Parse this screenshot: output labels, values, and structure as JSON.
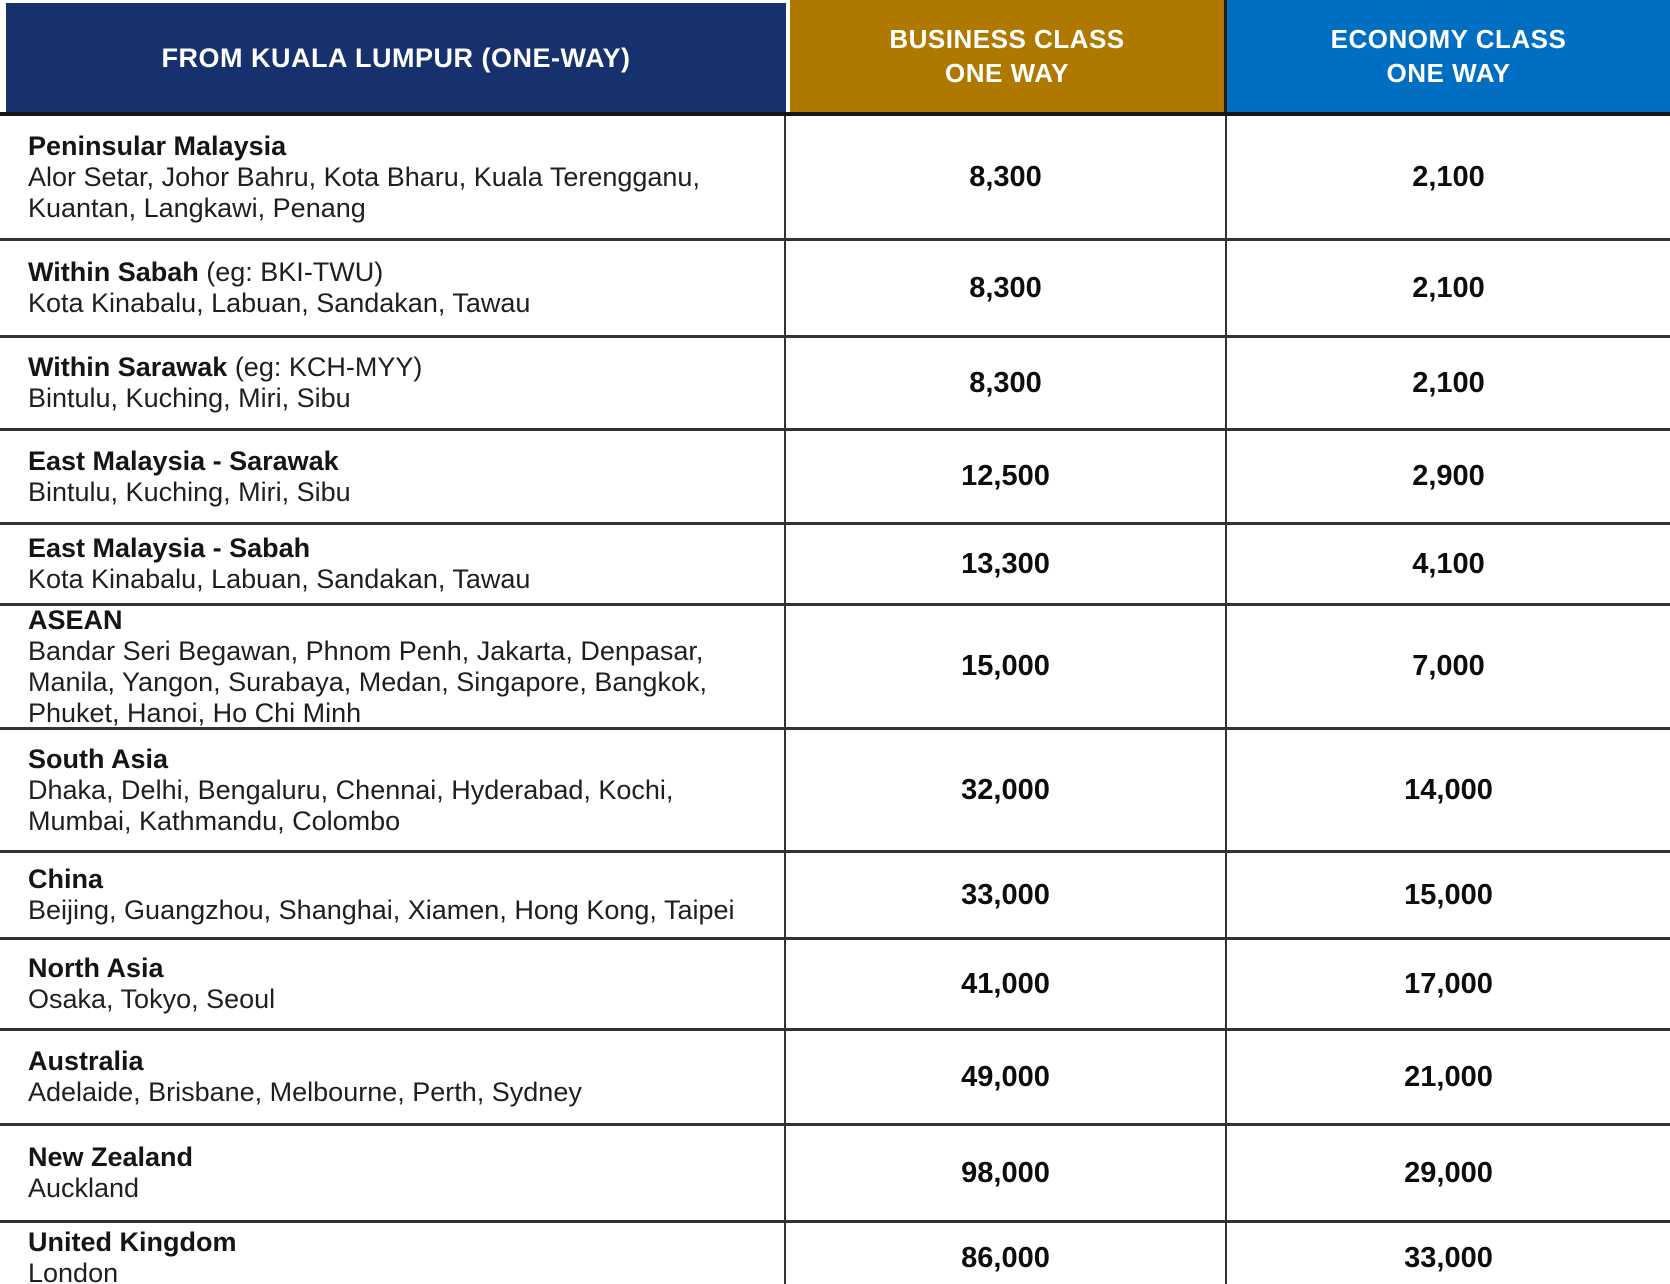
{
  "colors": {
    "header_navy": "#16316E",
    "header_gold": "#AF7900",
    "header_economy_blue": "#016FC1",
    "border_dark": "#333333"
  },
  "chart_data": {
    "type": "table",
    "title": "FROM KUALA LUMPUR (ONE-WAY)",
    "columns": [
      "FROM KUALA LUMPUR (ONE-WAY)",
      "BUSINESS CLASS ONE WAY",
      "ECONOMY CLASS ONE WAY"
    ],
    "header": {
      "route": "FROM KUALA LUMPUR (ONE-WAY)",
      "business_line1": "BUSINESS CLASS",
      "business_line2": "ONE WAY",
      "economy_line1": "ECONOMY CLASS",
      "economy_line2": "ONE WAY"
    },
    "rows": [
      {
        "region": "Peninsular Malaysia",
        "note": "",
        "cities": "Alor Setar, Johor Bahru, Kota Bharu, Kuala Terengganu,\nKuantan, Langkawi, Penang",
        "business": "8,300",
        "economy": "2,100"
      },
      {
        "region": "Within Sabah",
        "note": " (eg: BKI-TWU)",
        "cities": "Kota Kinabalu, Labuan, Sandakan, Tawau",
        "business": "8,300",
        "economy": "2,100"
      },
      {
        "region": "Within Sarawak",
        "note": " (eg: KCH-MYY)",
        "cities": "Bintulu, Kuching, Miri, Sibu",
        "business": "8,300",
        "economy": "2,100"
      },
      {
        "region": "East Malaysia - Sarawak",
        "note": "",
        "cities": "Bintulu, Kuching, Miri, Sibu",
        "business": "12,500",
        "economy": "2,900"
      },
      {
        "region": "East Malaysia - Sabah",
        "note": "",
        "cities": "Kota Kinabalu, Labuan, Sandakan, Tawau",
        "business": "13,300",
        "economy": "4,100"
      },
      {
        "region": "ASEAN",
        "note": "",
        "cities": "Bandar Seri Begawan, Phnom Penh, Jakarta, Denpasar,\nManila, Yangon, Surabaya, Medan, Singapore, Bangkok,\nPhuket, Hanoi, Ho Chi Minh",
        "business": "15,000",
        "economy": "7,000"
      },
      {
        "region": "South Asia",
        "note": "",
        "cities": "Dhaka, Delhi, Bengaluru, Chennai, Hyderabad, Kochi,\nMumbai, Kathmandu, Colombo",
        "business": "32,000",
        "economy": "14,000"
      },
      {
        "region": "China",
        "note": "",
        "cities": "Beijing, Guangzhou, Shanghai, Xiamen, Hong Kong, Taipei",
        "business": "33,000",
        "economy": "15,000"
      },
      {
        "region": "North Asia",
        "note": "",
        "cities": "Osaka, Tokyo, Seoul",
        "business": "41,000",
        "economy": "17,000"
      },
      {
        "region": "Australia",
        "note": "",
        "cities": "Adelaide, Brisbane, Melbourne, Perth, Sydney",
        "business": "49,000",
        "economy": "21,000"
      },
      {
        "region": "New Zealand",
        "note": "",
        "cities": "Auckland",
        "business": "98,000",
        "economy": "29,000"
      },
      {
        "region": "United Kingdom",
        "note": "",
        "cities": "London",
        "business": "86,000",
        "economy": "33,000"
      }
    ]
  }
}
